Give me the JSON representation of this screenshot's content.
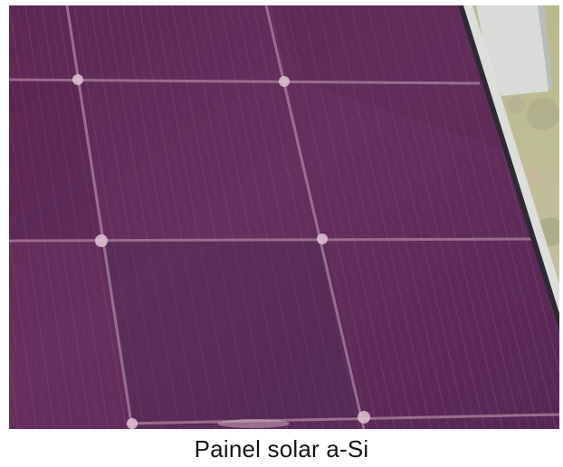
{
  "caption": "Painel solar a-Si",
  "colors": {
    "panel": "#5e2b57",
    "panel_dark": "#4a1f46",
    "busbar": "#9d6f8d",
    "frame": "#2b2b33",
    "ground": "#b7b894",
    "concrete": "#d9dcd7"
  }
}
